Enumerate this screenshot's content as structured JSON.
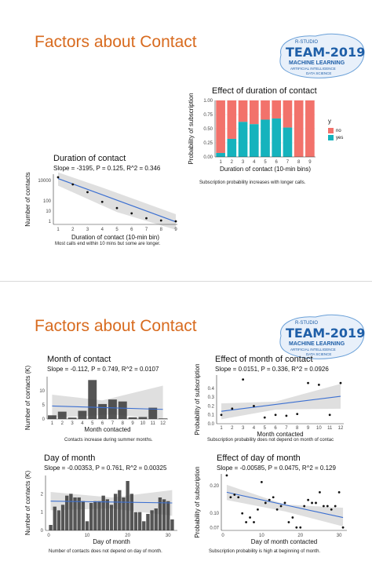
{
  "slides": [
    {
      "title": "Factors about Contact"
    },
    {
      "title": "Factors about Contact"
    }
  ],
  "logo": {
    "team_text": "TEAM-2019",
    "line1": "R-STUDIO",
    "line2": "MACHINE LEARNING",
    "line3": "ARTIFICIAL INTELLIGENCE",
    "line4": "DATA SCIENCE",
    "colors": {
      "fill": "#1f5fa8",
      "accent": "#6aa0d8"
    }
  },
  "colors": {
    "title": "#d86b1f",
    "no": "#f2726b",
    "yes": "#15b3bd",
    "bar": "#3d3d3d",
    "fit": "#3b6fd1",
    "band": "#d4d4d4"
  },
  "chart_data": [
    {
      "id": "duration",
      "type": "scatter",
      "title": "Duration of contact",
      "subtitle": "Slope = -3195, P = 0.125, R^2 = 0.346",
      "xlabel": "Duration of contact (10-min bin)",
      "ylabel": "Number of contacts",
      "caption": "Most calls end within 10 mins but some are longer.",
      "x": [
        1,
        2,
        3,
        4,
        5,
        6,
        7,
        8,
        9
      ],
      "y": [
        20000,
        4000,
        700,
        80,
        20,
        6,
        2,
        1.2,
        1
      ],
      "xlim": [
        1,
        9
      ],
      "ylim": [
        0.5,
        40000
      ],
      "yscale": "log",
      "xticks": [
        "1",
        "2",
        "3",
        "4",
        "5",
        "6",
        "7",
        "8",
        "9"
      ],
      "yticks": [
        {
          "v": 10000,
          "t": "10000"
        },
        {
          "v": 100,
          "t": "100"
        },
        {
          "v": 10,
          "t": "10"
        },
        {
          "v": 1,
          "t": "1"
        }
      ],
      "fit": {
        "y1": 15000,
        "y9": 0.9
      }
    },
    {
      "id": "prob_duration",
      "type": "bar",
      "stacked": true,
      "title": "Effect of duration of contact",
      "xlabel": "Duration of contact (10-min bins)",
      "ylabel": "Probability of subscription",
      "caption": "Subscription probability increases with longer calls.",
      "categories": [
        "1",
        "2",
        "3",
        "4",
        "5",
        "6",
        "7",
        "8",
        "9"
      ],
      "series": [
        {
          "name": "no",
          "values": [
            0.93,
            0.68,
            0.38,
            0.42,
            0.34,
            0.32,
            0.48,
            1.0,
            1.0
          ]
        },
        {
          "name": "yes",
          "values": [
            0.07,
            0.32,
            0.62,
            0.58,
            0.66,
            0.68,
            0.52,
            0.0,
            0.0
          ]
        }
      ],
      "ylim": [
        0,
        1
      ],
      "yticks": [
        "0.00",
        "0.25",
        "0.50",
        "0.75",
        "1.00"
      ],
      "legend": {
        "title": "y",
        "position": "right"
      }
    },
    {
      "id": "month",
      "type": "bar",
      "title": "Month of contact",
      "subtitle": "Slope = -0.112, P = 0.749, R^2 = 0.0107",
      "xlabel": "Month contacted",
      "ylabel": "Number of contacts (K)",
      "caption": "Contacts increase during summer months.",
      "categories": [
        "1",
        "2",
        "3",
        "4",
        "5",
        "6",
        "7",
        "8",
        "9",
        "10",
        "11",
        "12"
      ],
      "values": [
        1.3,
        2.6,
        0.5,
        2.9,
        13.8,
        5.3,
        6.9,
        6.2,
        0.6,
        0.7,
        4.0,
        0.2
      ],
      "ylim": [
        0,
        15
      ],
      "yticks": [
        "0",
        "5",
        "10"
      ],
      "fit": {
        "y1": 4.6,
        "y12": 3.4
      }
    },
    {
      "id": "prob_month",
      "type": "scatter",
      "title": "Effect of month of contact",
      "subtitle": "Slope = 0.0151, P = 0.336, R^2 = 0.0926",
      "xlabel": "Month contacted",
      "ylabel": "Probability of subscription",
      "caption": "Subscription probability does not depend on month of contac",
      "x": [
        1,
        2,
        3,
        4,
        5,
        6,
        7,
        8,
        9,
        10,
        11,
        12
      ],
      "y": [
        0.1,
        0.17,
        0.5,
        0.2,
        0.07,
        0.1,
        0.09,
        0.11,
        0.46,
        0.44,
        0.1,
        0.46
      ],
      "xlim": [
        1,
        12
      ],
      "ylim": [
        0,
        0.55
      ],
      "yticks": [
        "0.0",
        "0.1",
        "0.2",
        "0.3",
        "0.4"
      ],
      "fit": {
        "y1": 0.14,
        "y12": 0.31
      }
    },
    {
      "id": "day",
      "type": "bar",
      "title": "Day of month",
      "subtitle": "Slope = -0.00353, P = 0.761, R^2 = 0.00325",
      "xlabel": "Day of month",
      "ylabel": "Number of contacts (K)",
      "caption": "Number of contacts does not depend on day of month.",
      "categories": [
        "1",
        "2",
        "3",
        "4",
        "5",
        "6",
        "7",
        "8",
        "9",
        "10",
        "11",
        "12",
        "13",
        "14",
        "15",
        "16",
        "17",
        "18",
        "19",
        "20",
        "21",
        "22",
        "23",
        "24",
        "25",
        "26",
        "27",
        "28",
        "29",
        "30",
        "31"
      ],
      "values": [
        0.3,
        1.3,
        1.1,
        1.4,
        1.9,
        2.0,
        1.8,
        1.8,
        1.6,
        0.5,
        1.5,
        1.6,
        1.6,
        1.9,
        1.7,
        1.4,
        2.0,
        2.2,
        1.8,
        2.7,
        2.0,
        1.0,
        1.0,
        0.5,
        0.9,
        1.1,
        1.2,
        1.8,
        1.7,
        1.6,
        0.6
      ],
      "ylim": [
        0,
        3
      ],
      "yticks": [
        "0",
        "1",
        "2"
      ],
      "xticks": [
        "0",
        "10",
        "20",
        "30"
      ],
      "fit": {
        "y1": 1.6,
        "y31": 1.5
      }
    },
    {
      "id": "prob_day",
      "type": "scatter",
      "title": "Effect of day of month",
      "subtitle": "Slope = -0.00585, P = 0.0475, R^2 = 0.129",
      "xlabel": "Day of month contacted",
      "ylabel": "Probability of subscription",
      "caption": "Subscription probability is high at beginning of month.",
      "x": [
        1,
        2,
        3,
        4,
        5,
        6,
        7,
        8,
        9,
        10,
        11,
        12,
        13,
        14,
        15,
        16,
        17,
        18,
        19,
        20,
        21,
        22,
        23,
        24,
        25,
        26,
        27,
        28,
        29,
        30,
        31
      ],
      "y": [
        0.26,
        0.15,
        0.16,
        0.15,
        0.1,
        0.08,
        0.09,
        0.08,
        0.11,
        0.22,
        0.13,
        0.14,
        0.15,
        0.11,
        0.12,
        0.13,
        0.08,
        0.09,
        0.07,
        0.07,
        0.12,
        0.14,
        0.13,
        0.13,
        0.17,
        0.12,
        0.12,
        0.11,
        0.12,
        0.17,
        0.07
      ],
      "xlim": [
        0,
        32
      ],
      "ylim": [
        0.065,
        0.27
      ],
      "yscale": "log",
      "yticks": [
        {
          "v": 0.2,
          "t": "0.20"
        },
        {
          "v": 0.1,
          "t": "0.10"
        },
        {
          "v": 0.07,
          "t": "0.07"
        }
      ],
      "xticks": [
        "0",
        "10",
        "20",
        "30"
      ],
      "fit": {
        "y0": 0.17,
        "y31": 0.09
      }
    }
  ]
}
